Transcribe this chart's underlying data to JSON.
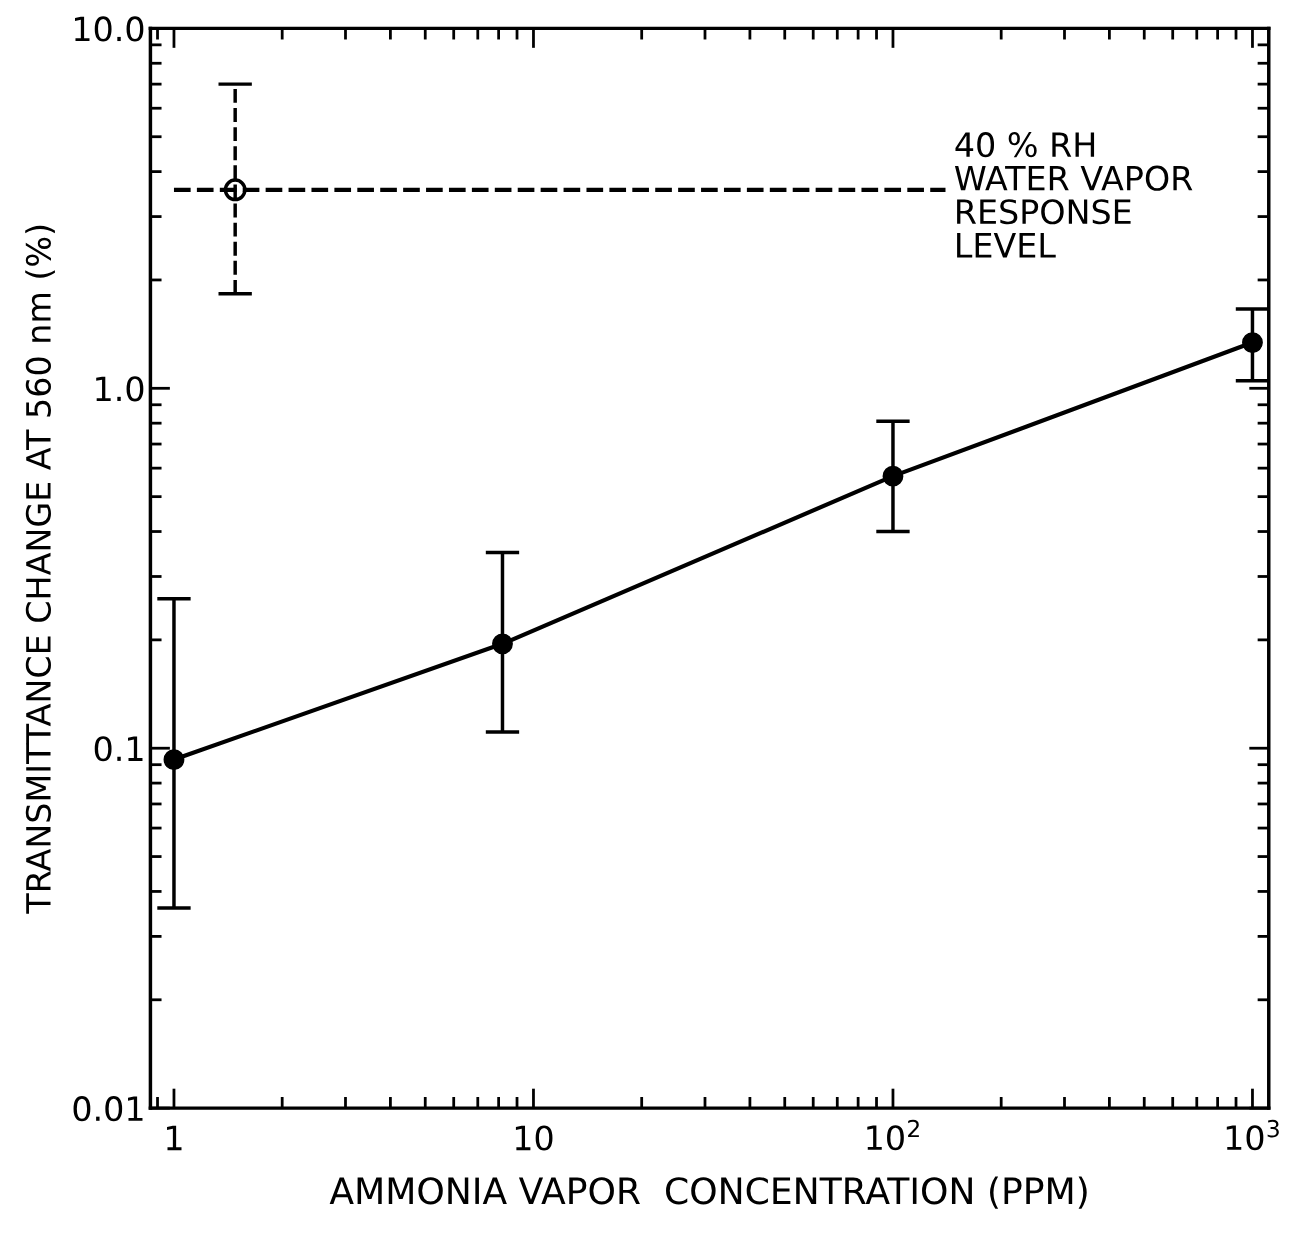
{
  "chart_data": {
    "type": "line",
    "xlabel": "AMMONIA VAPOR  CONCENTRATION (PPM)",
    "ylabel": "TRANSMITTANCE CHANGE AT 560 nm (%)",
    "log": "xy",
    "grid": false,
    "legend": false,
    "xlim": [
      0.86,
      1110
    ],
    "xticks": [
      1,
      10,
      {
        "value": 100,
        "label": "10$^{2}$"
      },
      {
        "value": 1000,
        "label": "10$^{3}$"
      }
    ],
    "ylim": [
      0.01,
      10
    ],
    "yticks": [
      0.01,
      0.1,
      {
        "value": 1,
        "label": "1.0"
      },
      {
        "value": 10,
        "label": "10.0"
      }
    ],
    "series": [
      {
        "color": "#000000",
        "marker": "circle",
        "line_style": "solid",
        "x": [
          1,
          8.2,
          100,
          1000
        ],
        "values": [
          0.093,
          0.195,
          0.57,
          1.34
        ],
        "errors": [
          [
            0.036,
            0.26
          ],
          [
            0.111,
            0.35
          ],
          [
            0.4,
            0.81
          ],
          [
            1.05,
            1.66
          ]
        ]
      },
      {
        "type": "scatter",
        "color": "#000000",
        "marker": "circle",
        "line_style": "dashed",
        "x": [
          1.48
        ],
        "values": [
          3.56
        ],
        "errors": [
          [
            1.83,
            7.0
          ]
        ]
      },
      {
        "type": "line",
        "color": "#000000",
        "marker": "none",
        "line_style": "dashed",
        "x": [
          1,
          140
        ],
        "values": [
          3.56,
          3.56
        ]
      }
    ],
    "annotations": [
      {
        "text": "40 % RH\nWATER VAPOR\nRESPONSE\nLEVEL",
        "x": 140,
        "y": 3.56
      }
    ]
  }
}
